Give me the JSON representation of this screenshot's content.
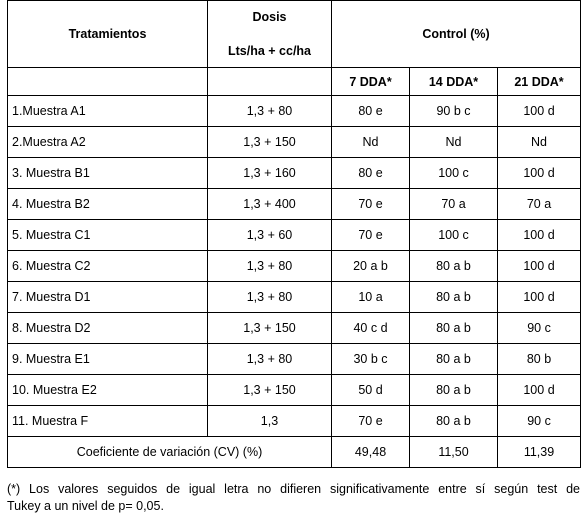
{
  "headers": {
    "treatments": "Tratamientos",
    "dose_line1": "Dosis",
    "dose_line2": "Lts/ha + cc/ha",
    "control": "Control (%)",
    "sub": [
      "7 DDA*",
      "14 DDA*",
      "21 DDA*"
    ]
  },
  "rows": [
    {
      "name": "1.Muestra A1",
      "dose": "1,3  + 80",
      "d7": "80 e",
      "d14": "90 b c",
      "d21": "100 d"
    },
    {
      "name": "2.Muestra A2",
      "dose": "1,3 + 150",
      "d7": "Nd",
      "d14": "Nd",
      "d21": "Nd"
    },
    {
      "name": "3. Muestra B1",
      "dose": "1,3 + 160",
      "d7": "80 e",
      "d14": "100 c",
      "d21": "100 d"
    },
    {
      "name": "4. Muestra B2",
      "dose": "1,3 + 400",
      "d7": "70 e",
      "d14": "70 a",
      "d21": "70 a"
    },
    {
      "name": "5. Muestra C1",
      "dose": "1,3 + 60",
      "d7": "70 e",
      "d14": "100 c",
      "d21": "100 d"
    },
    {
      "name": "6. Muestra C2",
      "dose": "1,3 + 80",
      "d7": "20 a b",
      "d14": "80 a b",
      "d21": "100 d"
    },
    {
      "name": "7. Muestra D1",
      "dose": "1,3 + 80",
      "d7": "10 a",
      "d14": "80 a b",
      "d21": "100 d"
    },
    {
      "name": "8. Muestra D2",
      "dose": "1,3 + 150",
      "d7": "40 c d",
      "d14": "80 a b",
      "d21": "90 c"
    },
    {
      "name": "9. Muestra E1",
      "dose": "1,3 + 80",
      "d7": "30 b c",
      "d14": "80 a b",
      "d21": "80 b"
    },
    {
      "name": "10. Muestra E2",
      "dose": "1,3 + 150",
      "d7": "50 d",
      "d14": "80 a b",
      "d21": "100 d"
    },
    {
      "name": "11. Muestra F",
      "dose": "1,3",
      "d7": "70 e",
      "d14": "80 a b",
      "d21": "90 c"
    }
  ],
  "cv": {
    "label": "Coeficiente de variación (CV) (%)",
    "d7": "49,48",
    "d14": "11,50",
    "d21": "11,39"
  },
  "footnote": {
    "line1": "(*) Los valores seguidos de igual letra no difieren significativamente entre sí según test de",
    "line2": "Tukey a un nivel de p= 0,05."
  }
}
